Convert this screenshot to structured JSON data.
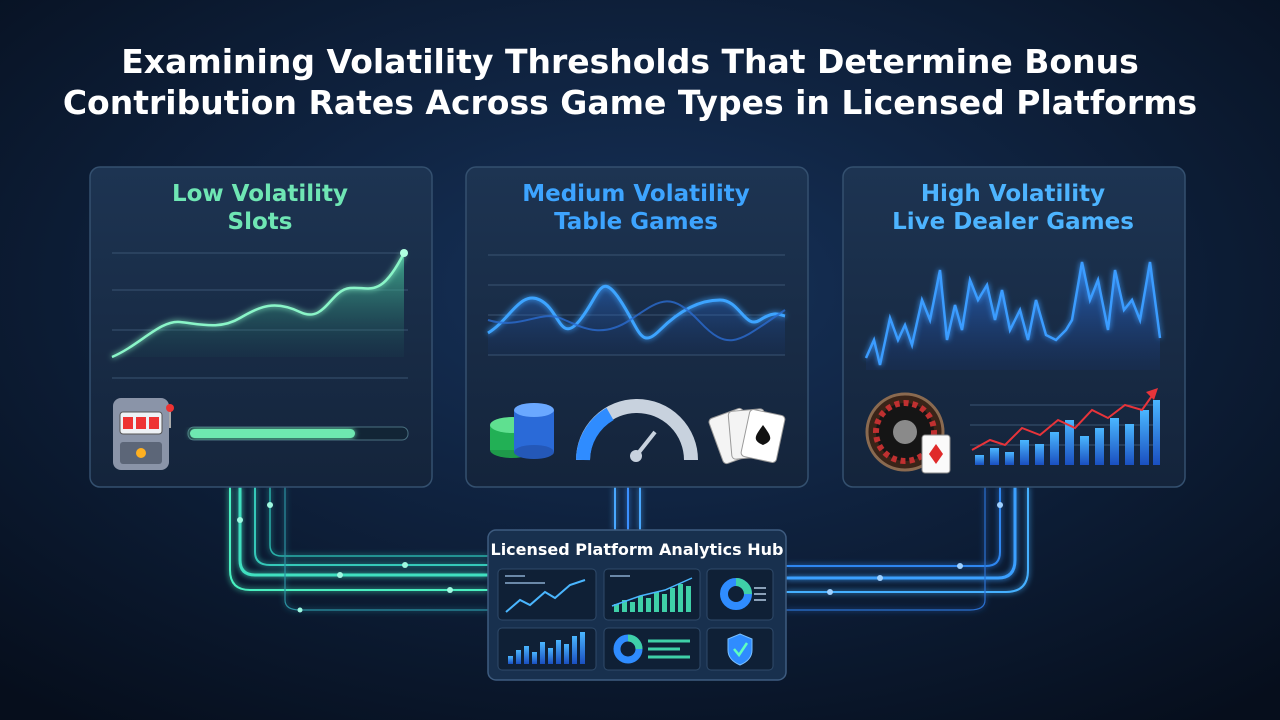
{
  "title_lines": [
    "Examining Volatility Thresholds That Determine Bonus",
    "Contribution Rates Across Game Types in Licensed Platforms"
  ],
  "cards": [
    {
      "title_lines": [
        "Low Volatility",
        "Slots"
      ]
    },
    {
      "title_lines": [
        "Medium Volatility",
        "Table Games"
      ]
    },
    {
      "title_lines": [
        "High Volatility",
        "Live Dealer Games"
      ]
    }
  ],
  "hub": {
    "title": "Licensed Platform Analytics Hub"
  }
}
